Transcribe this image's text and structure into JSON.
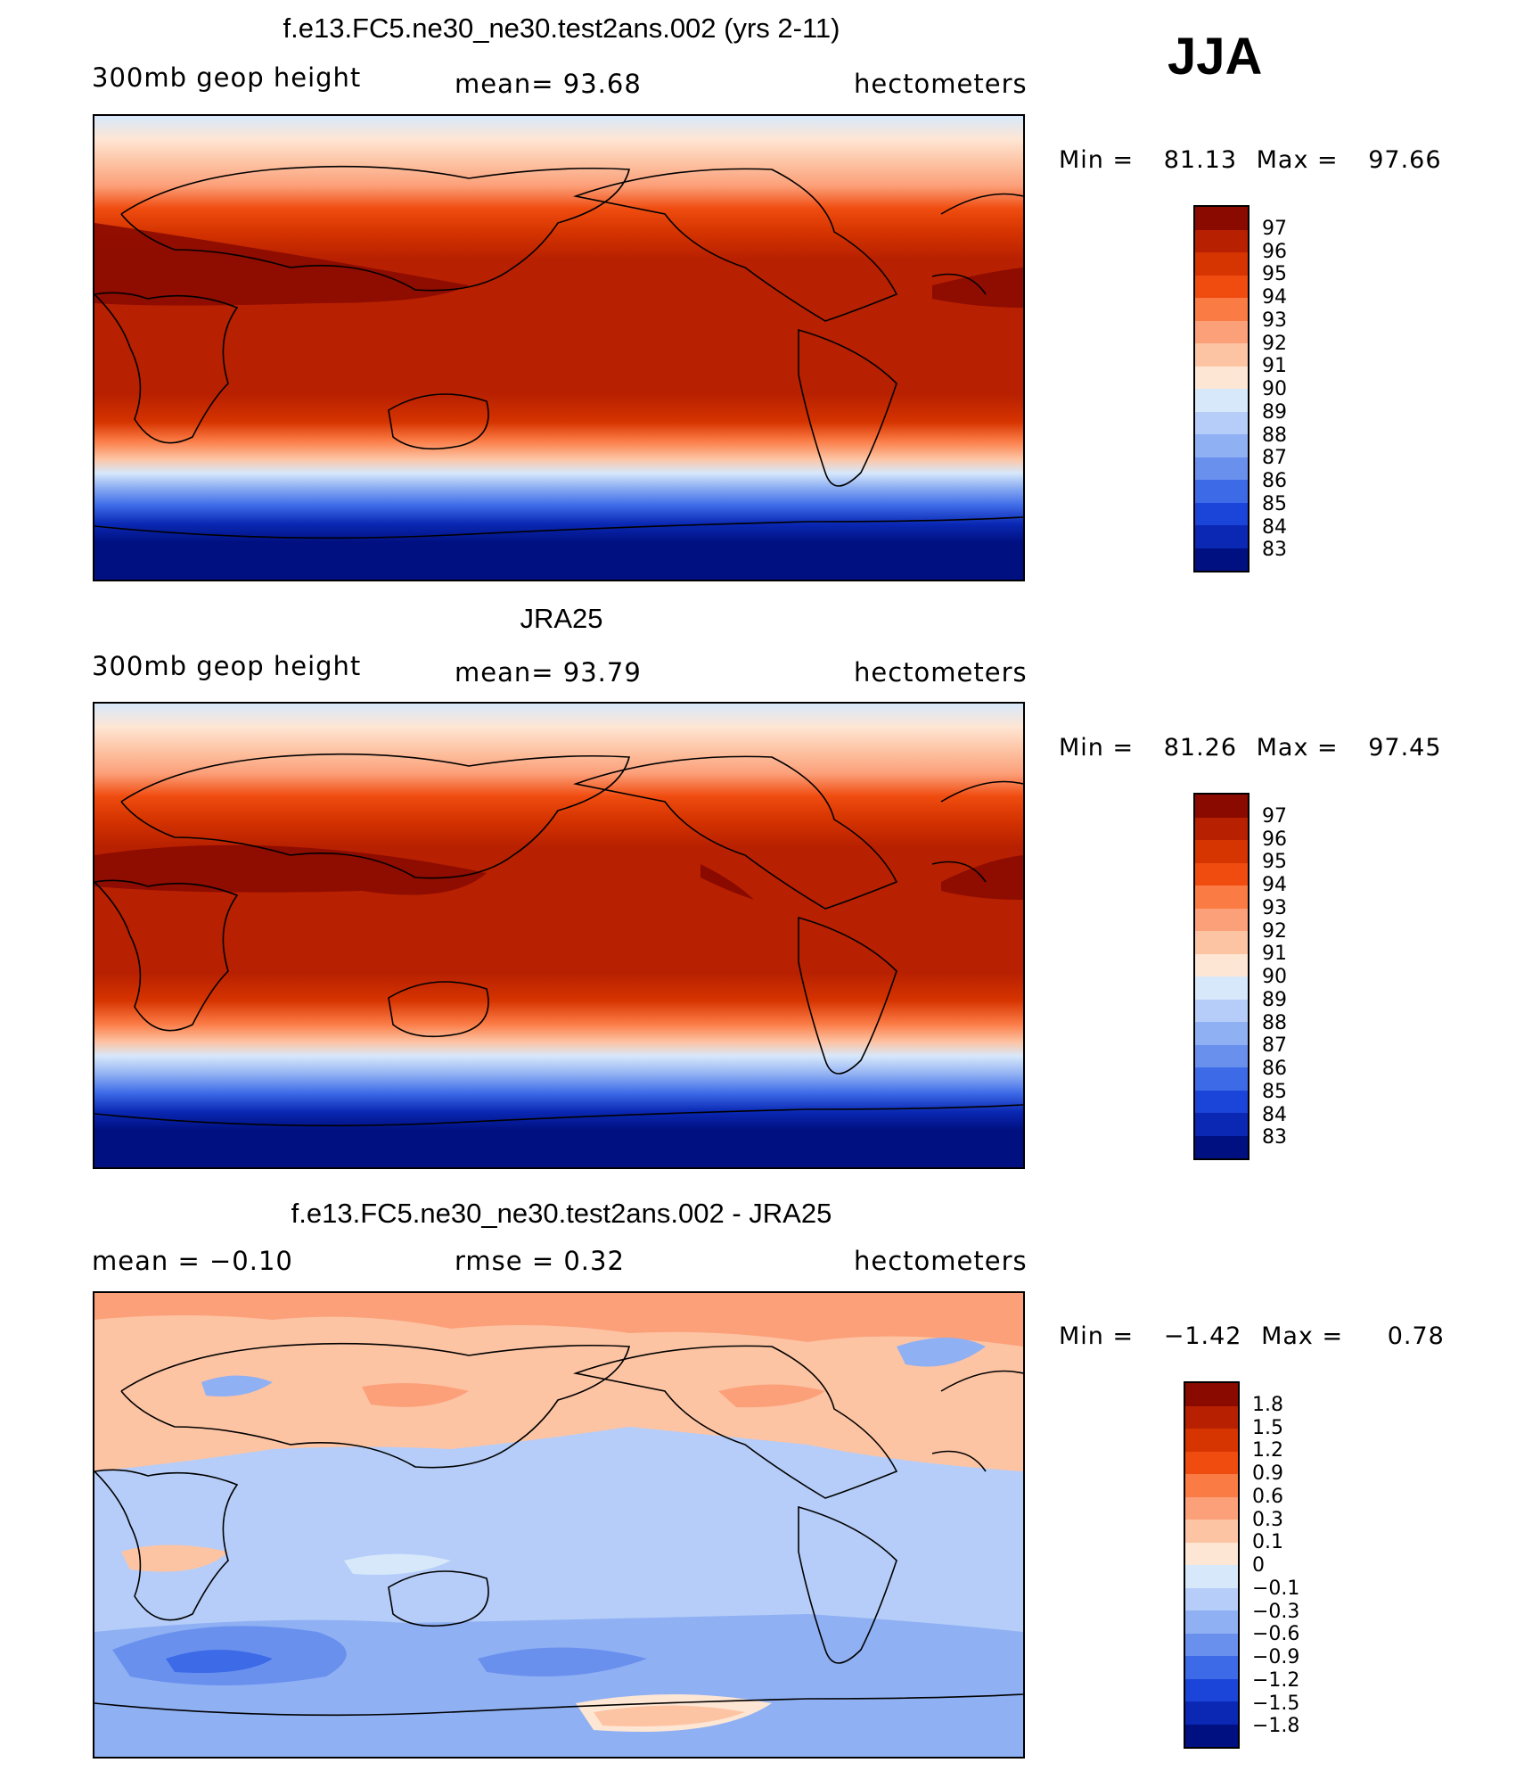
{
  "season": "JJA",
  "panels": [
    {
      "title": "f.e13.FC5.ne30_ne30.test2ans.002 (yrs 2-11)",
      "variable": "300mb geop height",
      "stat": "mean=  93.68",
      "units": "hectometers",
      "min_label": "Min =",
      "min": "81.13",
      "max_label": "Max =",
      "max": "97.66"
    },
    {
      "title": "JRA25",
      "variable": "300mb geop height",
      "stat": "mean=  93.79",
      "units": "hectometers",
      "min_label": "Min =",
      "min": "81.26",
      "max_label": "Max =",
      "max": "97.45"
    },
    {
      "title": "f.e13.FC5.ne30_ne30.test2ans.002 - JRA25",
      "variable": "mean =   −0.10",
      "stat": "rmse =    0.32",
      "units": "hectometers",
      "min_label": "Min =",
      "min": "−1.42",
      "max_label": "Max =",
      "max": "0.78"
    }
  ],
  "colorbar_abs": {
    "labels": [
      "97",
      "96",
      "95",
      "94",
      "93",
      "92",
      "91",
      "90",
      "89",
      "88",
      "87",
      "86",
      "85",
      "84",
      "83"
    ],
    "colors": [
      "#8a0a00",
      "#b72000",
      "#d63400",
      "#f04c10",
      "#fb7b45",
      "#fca07a",
      "#fdc4a4",
      "#fee6d4",
      "#d7e8fb",
      "#b5cdf8",
      "#8fb0f3",
      "#6a90ee",
      "#3d6be8",
      "#1b45d8",
      "#0a28b4",
      "#001080"
    ]
  },
  "colorbar_diff": {
    "labels": [
      "1.8",
      "1.5",
      "1.2",
      "0.9",
      "0.6",
      "0.3",
      "0.1",
      "0",
      "−0.1",
      "−0.3",
      "−0.6",
      "−0.9",
      "−1.2",
      "−1.5",
      "−1.8"
    ],
    "colors": [
      "#8a0a00",
      "#b72000",
      "#d63400",
      "#f04c10",
      "#fb7b45",
      "#fca07a",
      "#fdc4a4",
      "#fee6d4",
      "#d7e8fb",
      "#b5cdf8",
      "#8fb0f3",
      "#6a90ee",
      "#3d6be8",
      "#1b45d8",
      "#0a28b4",
      "#001080"
    ]
  }
}
